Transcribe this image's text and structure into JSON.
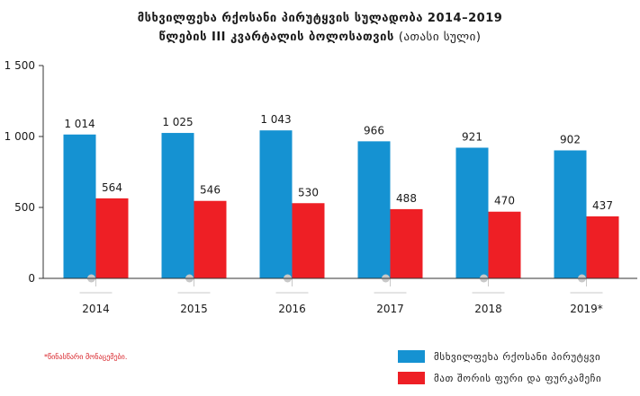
{
  "chart_data": {
    "type": "bar",
    "title_line1": "მსხვილფეხა რქოსანი პირუტყვის სულადობა 2014–2019",
    "title_line2": "წლების III კვარტალის ბოლოსათვის",
    "title_unit": "(ათასი სული)",
    "categories": [
      "2014",
      "2015",
      "2016",
      "2017",
      "2018",
      "2019*"
    ],
    "series": [
      {
        "name": "მსხვილფეხა რქოსანი პირუტყვი",
        "color": "#1592d2",
        "values": [
          1014,
          1025,
          1043,
          966,
          921,
          902
        ],
        "labels": [
          "1 014",
          "1 025",
          "1 043",
          "966",
          "921",
          "902"
        ]
      },
      {
        "name": "მათ შორის ფური და ფურკამეჩი",
        "color": "#ee1f25",
        "values": [
          564,
          546,
          530,
          488,
          470,
          437
        ],
        "labels": [
          "564",
          "546",
          "530",
          "488",
          "470",
          "437"
        ]
      }
    ],
    "ylim": [
      0,
      1500
    ],
    "yticks": [
      0,
      500,
      1000,
      1500
    ],
    "ytick_labels": [
      "0",
      "500",
      "1 000",
      "1 500"
    ],
    "grid": false,
    "legend_position": "bottom-right",
    "footnote": "*წინასწარი მონაცემები."
  }
}
